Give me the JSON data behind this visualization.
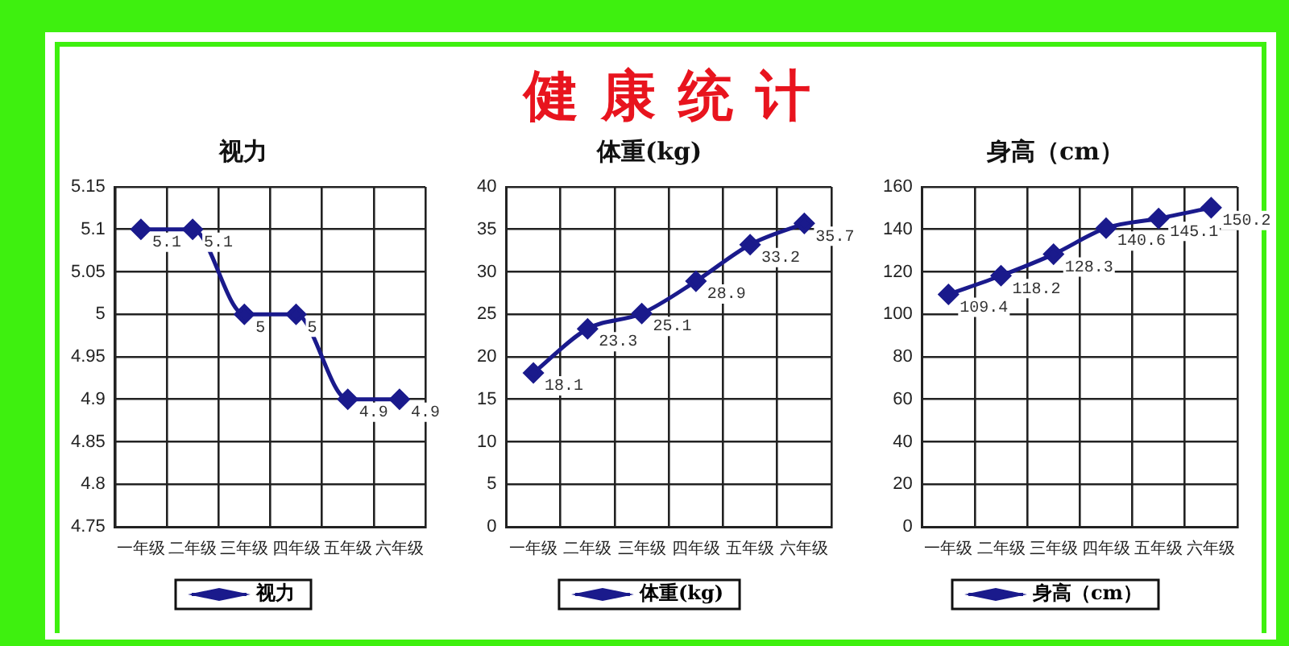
{
  "chart_data": [
    {
      "type": "other",
      "title": "健康统计"
    },
    {
      "type": "line",
      "title": "视力",
      "categories": [
        "一年级",
        "二年级",
        "三年级",
        "四年级",
        "五年级",
        "六年级"
      ],
      "series": [
        {
          "name": "视力",
          "color": "#1a1a8c",
          "values": [
            5.1,
            5.1,
            5,
            5,
            4.9,
            4.9
          ]
        }
      ],
      "ylim": [
        4.75,
        5.15
      ],
      "yticks": [
        4.75,
        4.8,
        4.85,
        4.9,
        4.95,
        5,
        5.05,
        5.1,
        5.15
      ],
      "grid": true,
      "legend": "bottom",
      "marker": "diamond",
      "data_labels": true
    },
    {
      "type": "line",
      "title": "体重(kg)",
      "categories": [
        "一年级",
        "二年级",
        "三年级",
        "四年级",
        "五年级",
        "六年级"
      ],
      "series": [
        {
          "name": "体重(kg)",
          "color": "#1a1a8c",
          "values": [
            18.1,
            23.3,
            25.1,
            28.9,
            33.2,
            35.7
          ]
        }
      ],
      "ylim": [
        0,
        40
      ],
      "yticks": [
        0,
        5,
        10,
        15,
        20,
        25,
        30,
        35,
        40
      ],
      "grid": true,
      "legend": "bottom",
      "marker": "diamond",
      "data_labels": true
    },
    {
      "type": "line",
      "title": "身高（cm）",
      "categories": [
        "一年级",
        "二年级",
        "三年级",
        "四年级",
        "五年级",
        "六年级"
      ],
      "series": [
        {
          "name": "身高（cm）",
          "color": "#1a1a8c",
          "values": [
            109.4,
            118.2,
            128.3,
            140.6,
            145.1,
            150.2
          ]
        }
      ],
      "ylim": [
        0,
        160
      ],
      "yticks": [
        0,
        20,
        40,
        60,
        80,
        100,
        120,
        140,
        160
      ],
      "grid": true,
      "legend": "bottom",
      "marker": "diamond",
      "data_labels": true
    }
  ]
}
